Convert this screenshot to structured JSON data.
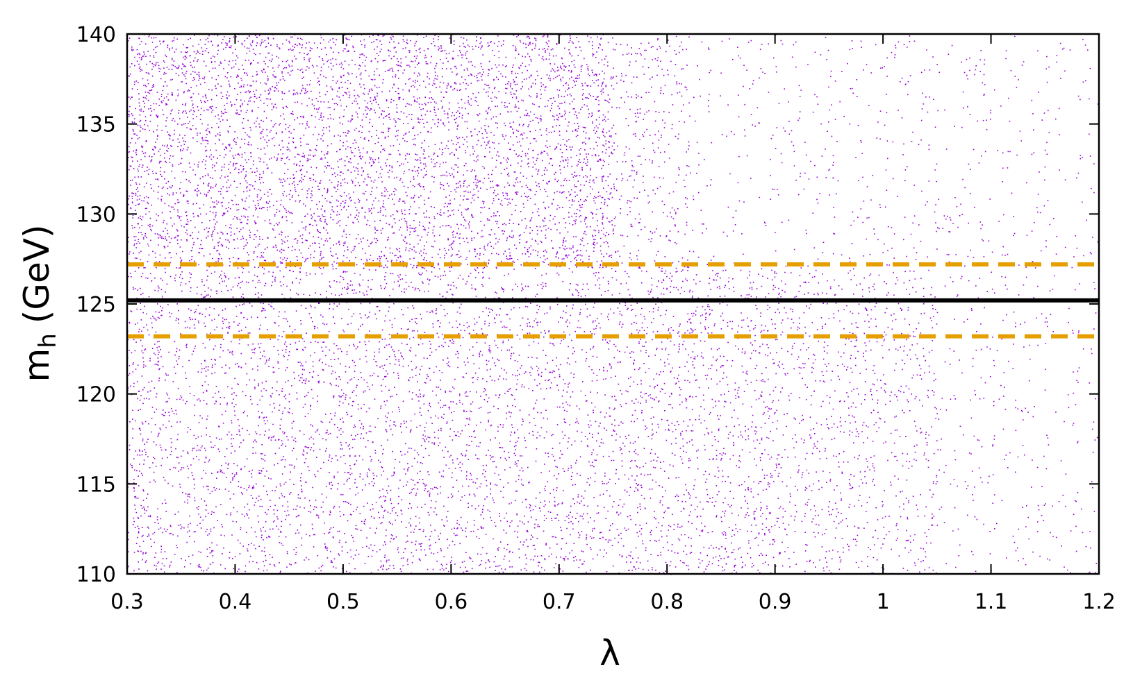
{
  "chart_data": {
    "type": "scatter",
    "xlabel": "λ",
    "ylabel_main": "m",
    "ylabel_sub": "h",
    "ylabel_unit": "(GeV)",
    "xlim": [
      0.3,
      1.2
    ],
    "ylim": [
      110,
      140
    ],
    "x_ticks": [
      0.3,
      0.4,
      0.5,
      0.6,
      0.7,
      0.8,
      0.9,
      1.0,
      1.1,
      1.2
    ],
    "x_tick_labels": [
      "0.3",
      "0.4",
      "0.5",
      "0.6",
      "0.7",
      "0.8",
      "0.9",
      "1",
      "1.1",
      "1.2"
    ],
    "y_ticks": [
      110,
      115,
      120,
      125,
      130,
      135,
      140
    ],
    "y_tick_labels": [
      "110",
      "115",
      "120",
      "125",
      "130",
      "135",
      "140"
    ],
    "grid": false,
    "legend": "none",
    "series": [
      {
        "color": "#9400d3",
        "density_profile": [
          {
            "x": [
              0.3,
              0.75
            ],
            "y": [
              127,
              140
            ],
            "density": "high"
          },
          {
            "x": [
              0.75,
              0.82
            ],
            "y": [
              127,
              140
            ],
            "density": "medium"
          },
          {
            "x": [
              0.82,
              1.2
            ],
            "y": [
              127,
              140
            ],
            "density": "low"
          },
          {
            "x": [
              0.3,
              0.9
            ],
            "y": [
              110,
              127
            ],
            "density": "high"
          },
          {
            "x": [
              0.9,
              1.05
            ],
            "y": [
              110,
              127
            ],
            "density": "medium"
          },
          {
            "x": [
              1.05,
              1.2
            ],
            "y": [
              110,
              127
            ],
            "density": "low"
          }
        ]
      }
    ],
    "reference_lines": [
      {
        "y": 125.2,
        "style": "solid",
        "color": "#000000"
      },
      {
        "y": 127.2,
        "style": "dashed",
        "color": "#e69f00"
      },
      {
        "y": 123.2,
        "style": "dashed",
        "color": "#e69f00"
      }
    ]
  }
}
